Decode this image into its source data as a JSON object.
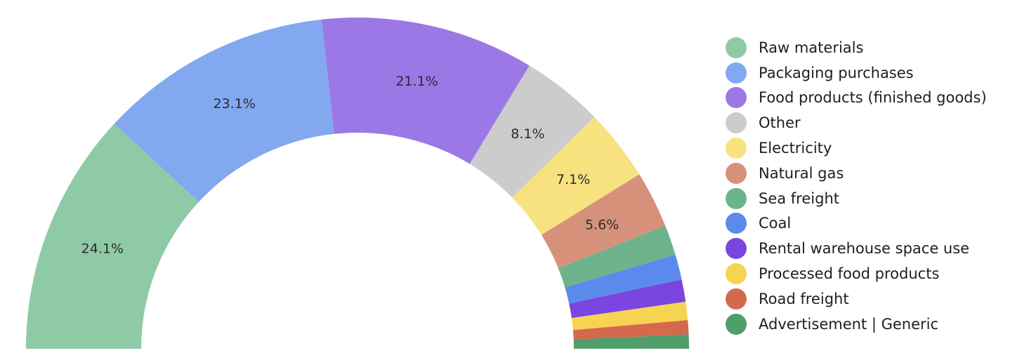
{
  "chart_data": {
    "type": "pie",
    "variant": "half-donut",
    "title": "",
    "legend_position": "right",
    "slices": [
      {
        "name": "Raw materials",
        "value": 24.1,
        "label": "24.1%",
        "color": "#8fcaa7"
      },
      {
        "name": "Packaging purchases",
        "value": 23.1,
        "label": "23.1%",
        "color": "#82a8f0"
      },
      {
        "name": "Food products (finished goods)",
        "value": 21.1,
        "label": "21.1%",
        "color": "#9c78e6"
      },
      {
        "name": "Other",
        "value": 8.1,
        "label": "8.1%",
        "color": "#cccccc"
      },
      {
        "name": "Electricity",
        "value": 7.1,
        "label": "7.1%",
        "color": "#f7e27f"
      },
      {
        "name": "Natural gas",
        "value": 5.6,
        "label": "5.6%",
        "color": "#d6917b"
      },
      {
        "name": "Sea freight",
        "value": 3.0,
        "label": "",
        "color": "#6db38b"
      },
      {
        "name": "Coal",
        "value": 2.5,
        "label": "",
        "color": "#5a8bec"
      },
      {
        "name": "Rental warehouse space use",
        "value": 2.2,
        "label": "",
        "color": "#7b45e0"
      },
      {
        "name": "Processed food products",
        "value": 1.8,
        "label": "",
        "color": "#f6d452"
      },
      {
        "name": "Road freight",
        "value": 1.4,
        "label": "",
        "color": "#d4694d"
      },
      {
        "name": "Advertisement | Generic",
        "value": 1.4,
        "label": "",
        "color": "#4f9e6b"
      }
    ]
  }
}
